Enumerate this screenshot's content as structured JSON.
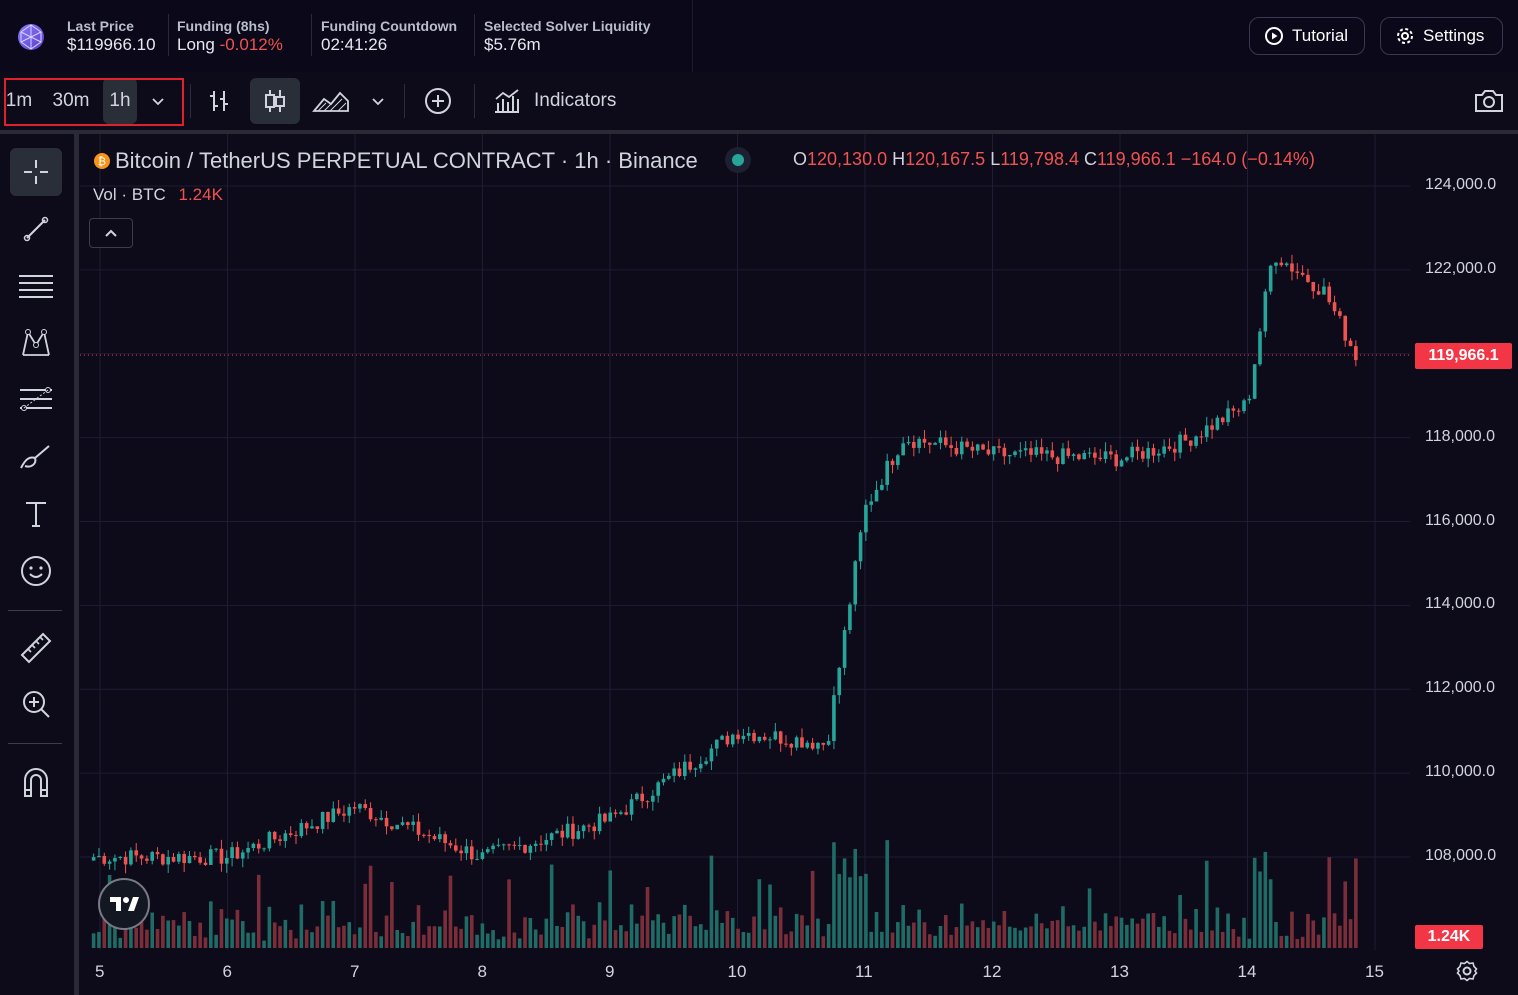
{
  "header": {
    "last_price": {
      "label": "Last Price",
      "value": "$119966.10"
    },
    "funding": {
      "label": "Funding (8hs)",
      "side": "Long",
      "rate": "-0.012%"
    },
    "countdown": {
      "label": "Funding Countdown",
      "value": "02:41:26"
    },
    "liquidity": {
      "label": "Selected Solver Liquidity",
      "value": "$5.76m"
    },
    "tutorial_label": "Tutorial",
    "settings_label": "Settings"
  },
  "toolbar": {
    "intervals": [
      "1m",
      "30m",
      "1h"
    ],
    "active_interval": "1h",
    "indicators_label": "Indicators"
  },
  "legend": {
    "symbol": "Bitcoin / TetherUS PERPETUAL CONTRACT · 1h · Binance",
    "o_label": "O",
    "o": "120,130.0",
    "h_label": "H",
    "h": "120,167.5",
    "l_label": "L",
    "l": "119,798.4",
    "c_label": "C",
    "c": "119,966.1",
    "change": "−164.0 (−0.14%)",
    "vol_label": "Vol · BTC",
    "vol_value": "1.24K"
  },
  "price_tag": "119,966.1",
  "vol_tag": "1.24K",
  "colors": {
    "up": "#26a69a",
    "down": "#ef5350",
    "tag": "#f23645",
    "background": "#0d0a1a"
  },
  "chart_data": {
    "type": "candlestick",
    "y_ticks": [
      "124,000.0",
      "122,000.0",
      "118,000.0",
      "116,000.0",
      "114,000.0",
      "112,000.0",
      "110,000.0",
      "108,000.0"
    ],
    "x_ticks": [
      "5",
      "6",
      "7",
      "8",
      "9",
      "10",
      "11",
      "12",
      "13",
      "14",
      "15"
    ],
    "ylim": [
      106000,
      124500
    ],
    "last_price": 119966.1,
    "series_close_by_day": [
      {
        "day": "5",
        "close": 108000
      },
      {
        "day": "6",
        "close": 108000
      },
      {
        "day": "7",
        "close": 109200
      },
      {
        "day": "8",
        "close": 108000
      },
      {
        "day": "9",
        "close": 108900
      },
      {
        "day": "10",
        "close": 111000
      },
      {
        "day": "10.7",
        "close": 110700
      },
      {
        "day": "11",
        "close": 116300
      },
      {
        "day": "11.3",
        "close": 118000
      },
      {
        "day": "12",
        "close": 117600
      },
      {
        "day": "13",
        "close": 117500
      },
      {
        "day": "13.5",
        "close": 117900
      },
      {
        "day": "14",
        "close": 118800
      },
      {
        "day": "14.2",
        "close": 122400
      },
      {
        "day": "14.6",
        "close": 121500
      },
      {
        "day": "14.85",
        "close": 119966
      }
    ]
  }
}
